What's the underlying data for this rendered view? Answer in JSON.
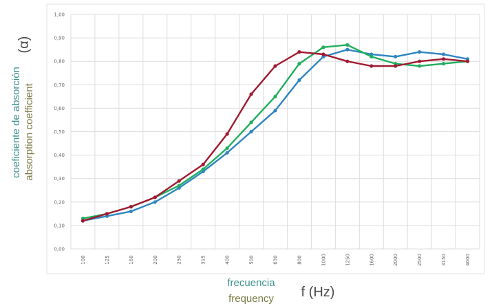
{
  "chart_data": {
    "type": "line",
    "categories": [
      "100",
      "125",
      "160",
      "200",
      "250",
      "315",
      "400",
      "500",
      "630",
      "800",
      "1000",
      "1250",
      "1600",
      "2000",
      "2500",
      "3150",
      "4000"
    ],
    "series": [
      {
        "color": "#2e86c1",
        "values": [
          0.12,
          0.14,
          0.16,
          0.2,
          0.26,
          0.33,
          0.41,
          0.5,
          0.59,
          0.72,
          0.82,
          0.85,
          0.83,
          0.82,
          0.84,
          0.83,
          0.81
        ]
      },
      {
        "color": "#1fae5e",
        "values": [
          0.13,
          0.15,
          0.18,
          0.22,
          0.27,
          0.34,
          0.43,
          0.54,
          0.65,
          0.79,
          0.86,
          0.87,
          0.82,
          0.79,
          0.78,
          0.79,
          0.8
        ]
      },
      {
        "color": "#a0192f",
        "values": [
          0.12,
          0.15,
          0.18,
          0.22,
          0.29,
          0.36,
          0.49,
          0.66,
          0.78,
          0.84,
          0.83,
          0.8,
          0.78,
          0.78,
          0.8,
          0.81,
          0.8
        ]
      }
    ],
    "ylim": [
      0,
      1
    ],
    "yticks": [
      "0,00",
      "0,10",
      "0,20",
      "0,30",
      "0,40",
      "0,50",
      "0,60",
      "0,70",
      "0,80",
      "0,90",
      "1,00"
    ],
    "ylabel": {
      "es": "coeficiente de absorción",
      "en": "absorption coefficient",
      "symbol": "(α)"
    },
    "xlabel": {
      "es": "frecuencia",
      "en": "frequency",
      "unit": "f (Hz)"
    },
    "grid": true
  }
}
